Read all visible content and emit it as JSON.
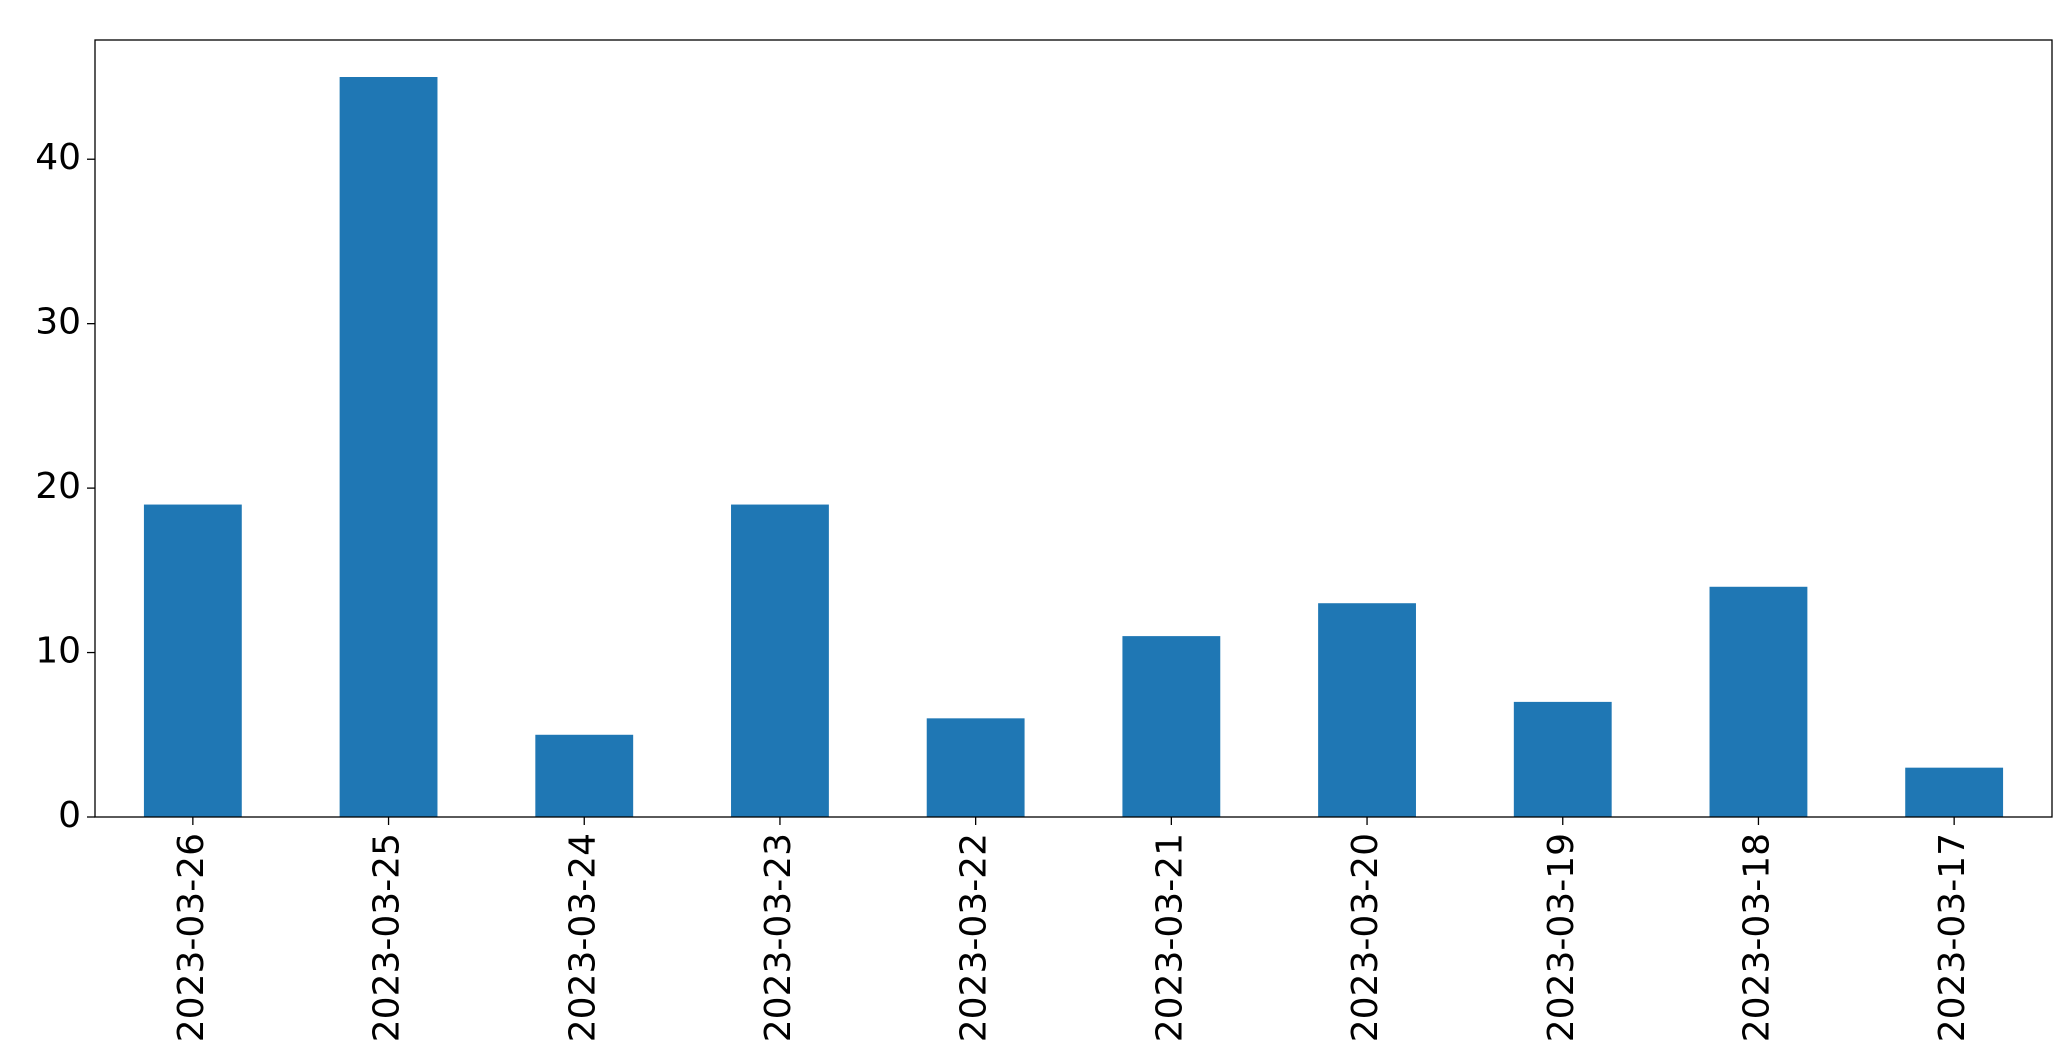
{
  "chart_data": {
    "type": "bar",
    "categories": [
      "2023-03-26",
      "2023-03-25",
      "2023-03-24",
      "2023-03-23",
      "2023-03-22",
      "2023-03-21",
      "2023-03-20",
      "2023-03-19",
      "2023-03-18",
      "2023-03-17"
    ],
    "values": [
      19,
      45,
      5,
      19,
      6,
      11,
      13,
      7,
      14,
      3
    ],
    "color": "#1f77b4",
    "ylim": [
      0,
      47.25
    ],
    "yticks": [
      0,
      10,
      20,
      30,
      40
    ],
    "grid": false
  }
}
